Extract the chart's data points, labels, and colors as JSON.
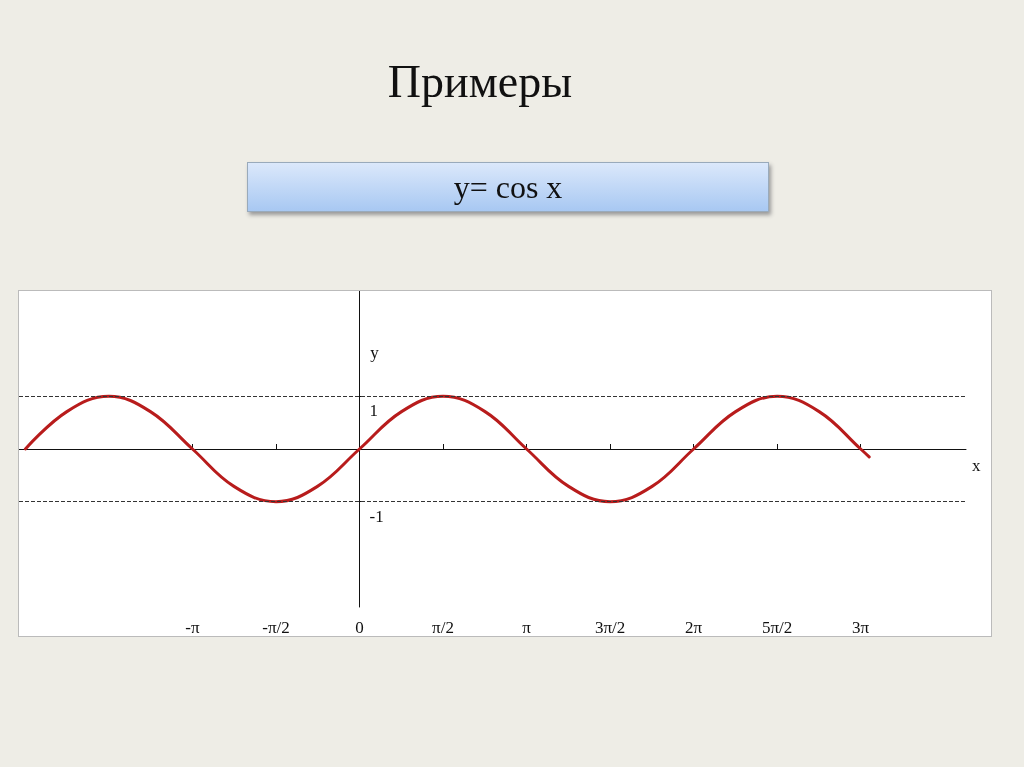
{
  "chart_data": {
    "type": "line",
    "title": "Примеры",
    "subtitle": "y= cos x",
    "xlabel": "x",
    "ylabel": "y",
    "x": [
      -6.28,
      -5.5,
      -4.71,
      -3.93,
      -3.14,
      -2.36,
      -1.57,
      -0.79,
      0,
      0.79,
      1.57,
      2.36,
      3.14,
      3.93,
      4.71,
      5.5,
      6.28,
      7.07,
      7.85,
      8.64,
      9.42,
      9.58
    ],
    "series": [
      {
        "color": "#b81c1c",
        "values": [
          0,
          0.71,
          1,
          0.71,
          0,
          -0.71,
          -1,
          -0.71,
          0,
          0.71,
          1,
          0.71,
          0,
          -0.71,
          -1,
          -0.71,
          0,
          0.71,
          1,
          0.71,
          0,
          -0.15
        ]
      }
    ],
    "xlim": [
      -6.4,
      11.4
    ],
    "ylim": [
      -3,
      3
    ],
    "xticks": [
      {
        "value": -3.14,
        "label": "-π"
      },
      {
        "value": -1.57,
        "label": "-π/2"
      },
      {
        "value": 0,
        "label": "0"
      },
      {
        "value": 1.57,
        "label": "π/2"
      },
      {
        "value": 3.14,
        "label": "π"
      },
      {
        "value": 4.71,
        "label": "3π/2"
      },
      {
        "value": 6.28,
        "label": "2π"
      },
      {
        "value": 7.85,
        "label": "5π/2"
      },
      {
        "value": 9.42,
        "label": "3π"
      }
    ],
    "yticks": [
      -1,
      1
    ],
    "ref_lines": [
      {
        "axis": "y",
        "value": 1,
        "label": null,
        "line_style": "dashed",
        "color": "#333333"
      },
      {
        "axis": "y",
        "value": -1,
        "label": null,
        "line_style": "dashed",
        "color": "#333333"
      }
    ],
    "grid": false,
    "marker": "none",
    "line_style": "solid"
  }
}
